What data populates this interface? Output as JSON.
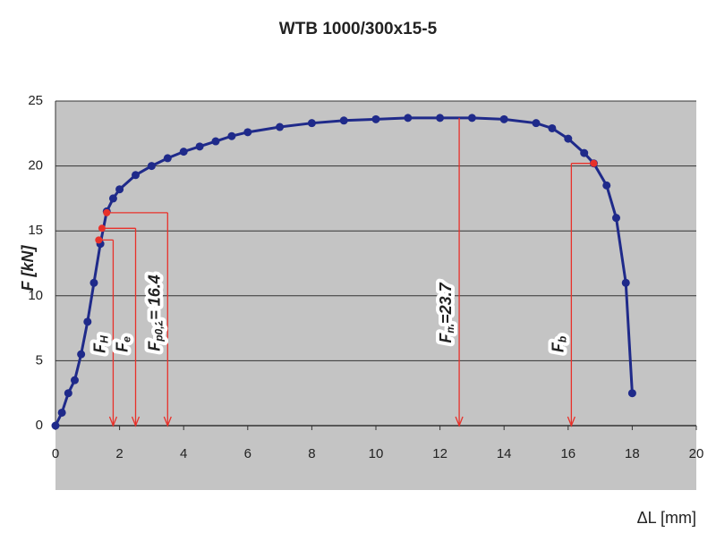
{
  "chart_data": {
    "type": "scatter",
    "title": "WTB 1000/300x15-5",
    "x_label": "ΔL [mm]",
    "y_label": "F [kN]",
    "xlim": [
      0,
      20
    ],
    "xticks": [
      0,
      2,
      4,
      6,
      8,
      10,
      12,
      14,
      16,
      18,
      20
    ],
    "ylim": [
      0,
      25
    ],
    "yticks": [
      0,
      5,
      10,
      15,
      20,
      25
    ],
    "grid": true,
    "series": [
      {
        "color": "#1f2a8a",
        "x": [
          0,
          0.2,
          0.4,
          0.6,
          0.8,
          1.0,
          1.2,
          1.4,
          1.6,
          1.8,
          2.0,
          2.5,
          3.0,
          3.5,
          4,
          4.5,
          5,
          5.5,
          6,
          7,
          8,
          9,
          10,
          11,
          12,
          13,
          14,
          15,
          15.5,
          16,
          16.5,
          16.8,
          17.2,
          17.5,
          17.8,
          18
        ],
        "values": [
          0,
          1,
          2.5,
          3.5,
          5.5,
          8,
          11,
          14,
          16.5,
          17.5,
          18.2,
          19.3,
          20,
          20.6,
          21.1,
          21.5,
          21.9,
          22.3,
          22.6,
          23,
          23.3,
          23.5,
          23.6,
          23.7,
          23.7,
          23.7,
          23.6,
          23.3,
          22.9,
          22.1,
          21,
          20.2,
          18.5,
          16,
          11,
          2.5
        ]
      }
    ],
    "annotations": [
      {
        "label": "F",
        "sub": "H",
        "x": 1.8,
        "y": 14.3,
        "from_x": 1.35
      },
      {
        "label": "F",
        "sub": "e",
        "x": 2.5,
        "y": 15.2,
        "from_x": 1.45
      },
      {
        "label": "F",
        "sub": "p0,2",
        "suffix": "= 16.4",
        "x": 3.5,
        "y": 16.4,
        "from_x": 1.6
      },
      {
        "label": "F",
        "sub": "m",
        "suffix": "=23.7",
        "x": 12.6,
        "y": 23.7
      },
      {
        "label": "F",
        "sub": "b",
        "x": 16.1,
        "y": 20.2,
        "from_x": 16.8
      }
    ]
  }
}
